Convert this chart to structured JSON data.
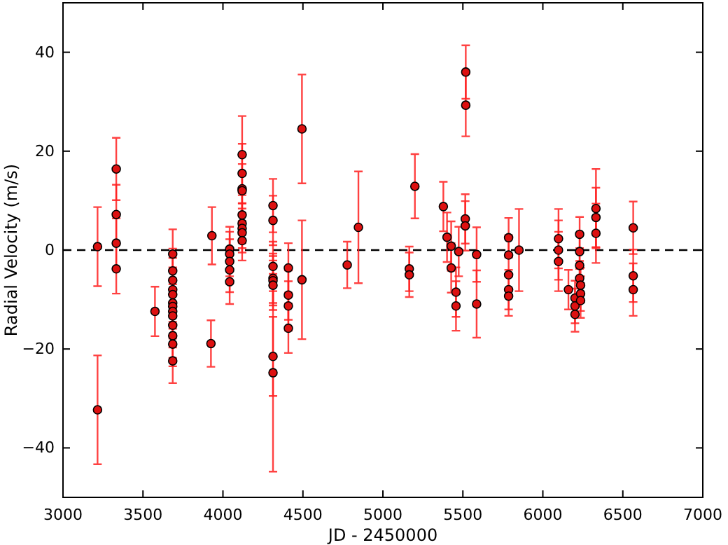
{
  "chart_data": {
    "type": "scatter",
    "xlabel": "JD - 2450000",
    "ylabel": "Radial Velocity (m/s)",
    "xlim": [
      3000,
      7000
    ],
    "xticks": [
      3000,
      3500,
      4000,
      4500,
      5000,
      5500,
      6000,
      6500,
      7000
    ],
    "ylim": [
      -50,
      50
    ],
    "yticks": [
      -40,
      -20,
      0,
      20,
      40
    ],
    "marker": "circle",
    "grid": false,
    "ref_lines": [
      {
        "axis": "y",
        "value": 0,
        "color": "#000000",
        "line_style": "dashed"
      }
    ],
    "series": [
      {
        "color": "#dd1111",
        "x": [
          3216,
          3216,
          3333,
          3333,
          3333,
          3333,
          3575,
          3686,
          3686,
          3686,
          3686,
          3686,
          3686,
          3686,
          3686,
          3686,
          3686,
          3686,
          3686,
          3686,
          3931,
          3925,
          4042,
          4042,
          4042,
          4042,
          4042,
          4120,
          4120,
          4120,
          4120,
          4120,
          4120,
          4120,
          4120,
          4120,
          4313,
          4313,
          4313,
          4313,
          4313,
          4313,
          4313,
          4313,
          4409,
          4409,
          4409,
          4409,
          4494,
          4494,
          4777,
          4847,
          5165,
          5165,
          5200,
          5378,
          5401,
          5427,
          5427,
          5457,
          5457,
          5474,
          5515,
          5515,
          5518,
          5518,
          5586,
          5586,
          5786,
          5786,
          5786,
          5786,
          5786,
          5851,
          6098,
          6098,
          6098,
          6160,
          6201,
          6201,
          6201,
          6230,
          6230,
          6230,
          6230,
          6236,
          6236,
          6236,
          6332,
          6332,
          6332,
          6565,
          6565,
          6565
        ],
        "values": [
          0.7,
          -32.3,
          16.4,
          7.2,
          1.4,
          -3.8,
          -12.4,
          -0.8,
          -4.2,
          -6.1,
          -8.0,
          -9.0,
          -10.7,
          -11.4,
          -12.4,
          -13.3,
          -15.2,
          -17.3,
          -19.0,
          -22.4,
          2.9,
          -18.9,
          0.2,
          -0.8,
          -2.3,
          -4.0,
          -6.4,
          19.3,
          15.5,
          12.4,
          12.0,
          7.1,
          5.4,
          4.4,
          3.5,
          1.9,
          9.0,
          6.0,
          -3.3,
          -5.7,
          -6.2,
          -7.1,
          -21.5,
          -24.8,
          -3.6,
          -9.1,
          -11.3,
          -15.8,
          24.5,
          -6.0,
          -3.0,
          4.6,
          -3.8,
          -5.0,
          12.9,
          8.8,
          2.6,
          0.8,
          -3.6,
          -8.5,
          -11.3,
          -0.3,
          6.3,
          4.9,
          36.0,
          29.3,
          -0.9,
          -10.9,
          2.5,
          -1.0,
          -5.0,
          -8.0,
          -9.3,
          0,
          2.3,
          0,
          -2.3,
          -8.0,
          -9.7,
          -11.3,
          -13.0,
          3.2,
          -0.3,
          -3.1,
          -5.7,
          -7.1,
          -8.8,
          -10.2,
          8.4,
          6.6,
          3.4,
          4.5,
          -5.2,
          -8.0
        ],
        "errors": [
          8,
          11,
          6.3,
          6,
          5,
          5,
          5,
          5,
          4.5,
          4.5,
          4.5,
          null,
          null,
          4.5,
          null,
          null,
          4.5,
          4.5,
          4.5,
          4.5,
          5.8,
          4.7,
          4.5,
          4.5,
          4.5,
          4.5,
          4.5,
          7.8,
          6,
          5,
          null,
          4,
          4,
          4,
          4,
          4,
          5.4,
          5,
          5,
          5,
          5,
          5,
          8,
          20,
          5,
          5,
          5,
          5,
          11,
          12,
          4.7,
          11.3,
          4.5,
          4.5,
          6.5,
          5,
          5,
          5,
          5,
          5,
          5,
          5,
          5,
          5,
          5.4,
          6.3,
          5.5,
          6.8,
          4,
          4,
          null,
          4,
          4,
          8.3,
          6,
          6,
          6,
          4,
          3.5,
          3.5,
          3.5,
          3.5,
          3.5,
          3.5,
          3.5,
          3.5,
          3.5,
          3.5,
          8,
          6,
          6,
          5.3,
          5.3,
          5.3
        ]
      }
    ]
  }
}
